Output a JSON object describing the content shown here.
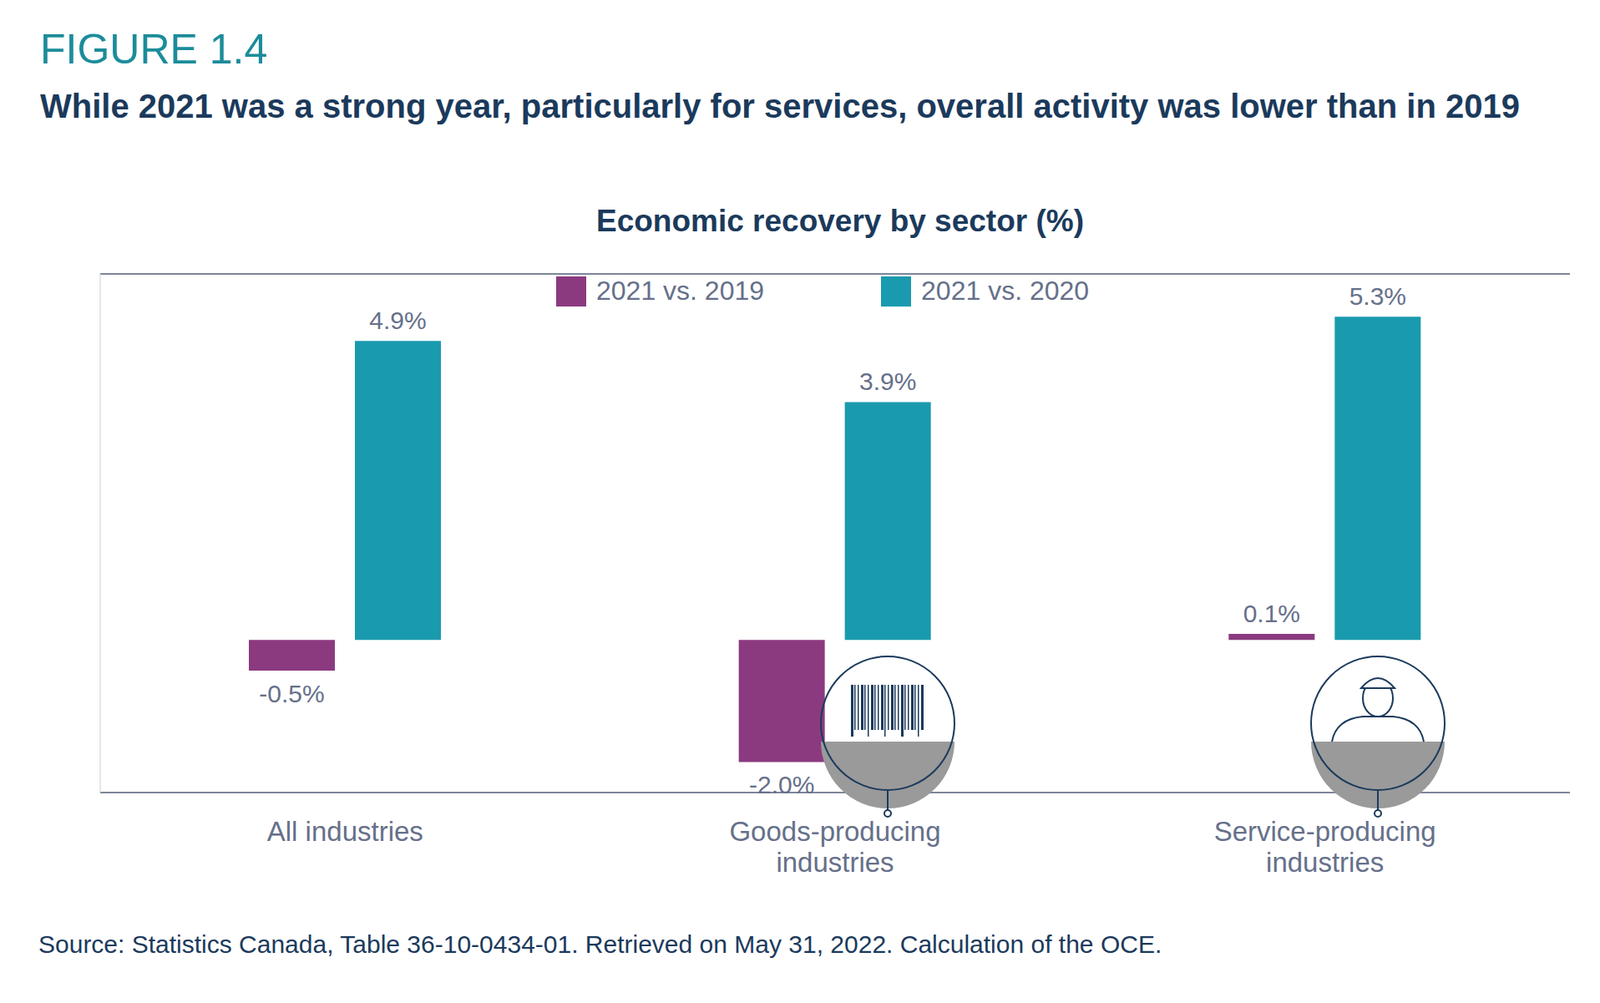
{
  "chart_data": {
    "type": "bar",
    "figure_label": "FIGURE 1.4",
    "title": "While 2021 was a strong year, particularly for services, overall activity was lower than in 2019",
    "subtitle": "Economic recovery by sector (%)",
    "source": "Source: Statistics Canada, Table 36-10-0434-01. Retrieved on May 31, 2022. Calculation of the OCE.",
    "categories": [
      "All industries",
      "Goods-producing industries",
      "Service-producing industries"
    ],
    "series": [
      {
        "name": "2021 vs. 2019",
        "color": "#8b3a80",
        "values": [
          -0.5,
          -2.0,
          0.1
        ],
        "value_labels": [
          "-0.5%",
          "-2.0%",
          "0.1%"
        ]
      },
      {
        "name": "2021 vs. 2020",
        "color": "#1a9aae",
        "values": [
          4.9,
          3.9,
          5.3
        ],
        "value_labels": [
          "4.9%",
          "3.9%",
          "5.3%"
        ]
      }
    ],
    "ylim": [
      -2.5,
      6
    ],
    "yticks": [
      0
    ],
    "grid": true,
    "legend": "top",
    "data_labels": true,
    "tick_labels": "x"
  }
}
